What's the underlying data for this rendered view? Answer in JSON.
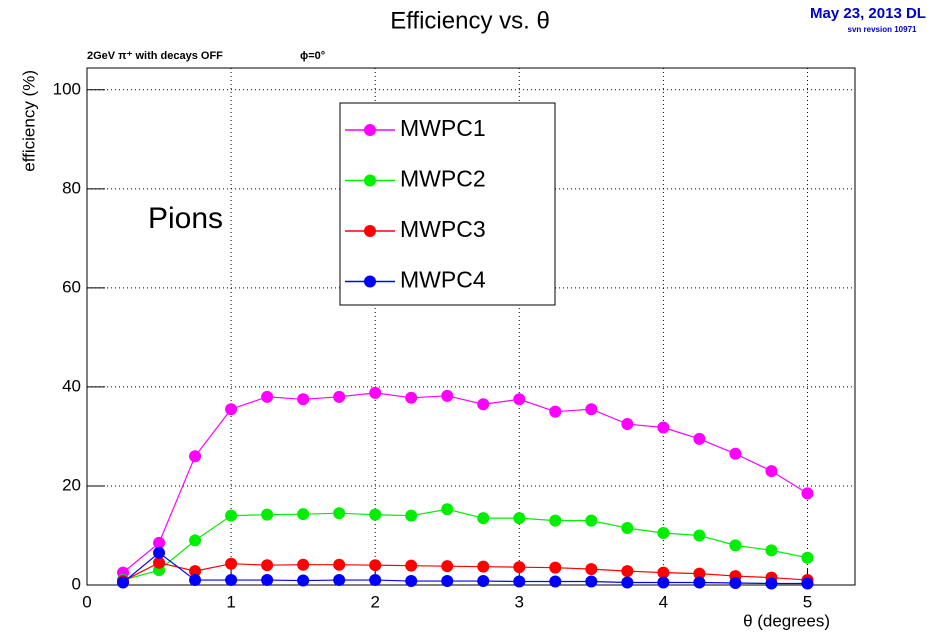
{
  "chart_data": {
    "type": "line",
    "title": "Efficiency vs. θ",
    "date_note": "May 23, 2013 DL",
    "revision_note": "svn revsion 10971",
    "subtitle": "2GeV  π⁺ with decays OFF",
    "phi_note": "ϕ=0°",
    "annotation": "Pions",
    "x_label": "θ (degrees)",
    "y_label": "efficiency (%)",
    "x": [
      0.25,
      0.5,
      0.75,
      1,
      1.25,
      1.5,
      1.75,
      2,
      2.25,
      2.5,
      2.75,
      3,
      3.25,
      3.5,
      3.75,
      4,
      4.25,
      4.5,
      4.75,
      5
    ],
    "series": [
      {
        "name": "MWPC1",
        "color": "#ff00ff",
        "values": [
          2.5,
          8.5,
          26,
          35.5,
          38,
          37.5,
          38,
          38.8,
          37.8,
          38.2,
          36.5,
          37.5,
          35,
          35.5,
          32.5,
          31.8,
          29.5,
          26.5,
          23,
          18.5
        ]
      },
      {
        "name": "MWPC2",
        "color": "#00ee00",
        "values": [
          1,
          3,
          9,
          14,
          14.2,
          14.3,
          14.5,
          14.2,
          14,
          15.3,
          13.5,
          13.5,
          13,
          13,
          11.5,
          10.5,
          10,
          8,
          7,
          5.5
        ]
      },
      {
        "name": "MWPC3",
        "color": "#ff0000",
        "values": [
          0.8,
          4.5,
          2.8,
          4.3,
          4,
          4.1,
          4.1,
          4,
          3.9,
          3.8,
          3.7,
          3.6,
          3.5,
          3.2,
          2.8,
          2.5,
          2.3,
          1.8,
          1.5,
          1.0
        ]
      },
      {
        "name": "MWPC4",
        "color": "#0000ff",
        "values": [
          0.5,
          6.5,
          1,
          1,
          1,
          0.9,
          1,
          1,
          0.8,
          0.8,
          0.8,
          0.7,
          0.7,
          0.7,
          0.5,
          0.5,
          0.5,
          0.4,
          0.3,
          0.3
        ]
      }
    ],
    "xlim": [
      0,
      5.33
    ],
    "ylim": [
      0,
      104.4
    ],
    "xticks": [
      0,
      1,
      2,
      3,
      4,
      5
    ],
    "yticks": [
      0,
      20,
      40,
      60,
      80,
      100
    ],
    "grid": true
  }
}
